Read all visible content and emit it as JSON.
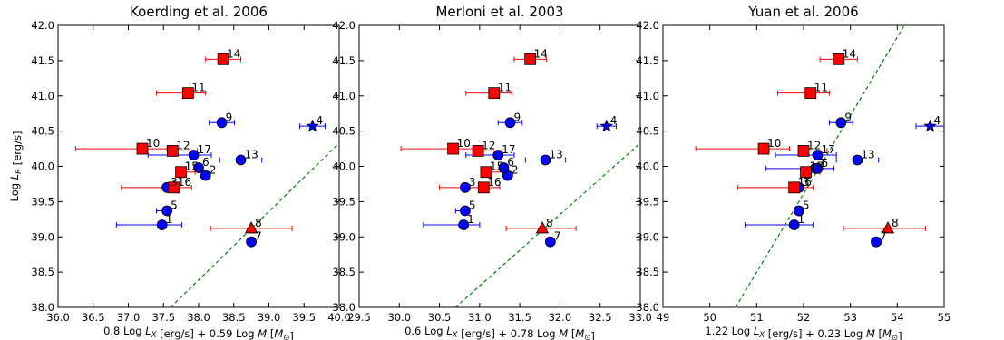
{
  "chart_data": [
    {
      "type": "scatter",
      "title": "Koerding et al. 2006",
      "xlabel": "0.8 Log L_X [erg/s] + 0.59 Log M [M_⊙]",
      "ylabel": "Log L_R [erg/s]",
      "xlim": [
        36.0,
        40.0
      ],
      "ylim": [
        38.0,
        42.0
      ],
      "xticks": [
        "36.0",
        "36.5",
        "37.0",
        "37.5",
        "38.0",
        "38.5",
        "39.0",
        "39.5",
        "40.0"
      ],
      "yticks": [
        "38.0",
        "38.5",
        "39.0",
        "39.5",
        "40.0",
        "40.5",
        "41.0",
        "41.5",
        "42.0"
      ],
      "line": [
        [
          37.6,
          38.0
        ],
        [
          40.0,
          40.33
        ]
      ],
      "points": [
        {
          "label": "1",
          "x": 37.48,
          "y": 39.17,
          "xerr": [
            0.65,
            0.28
          ],
          "marker": "circle",
          "color": "#0000ff"
        },
        {
          "label": "2",
          "x": 38.1,
          "y": 39.87,
          "xerr": [
            0,
            0
          ],
          "marker": "circle",
          "color": "#0000ff"
        },
        {
          "label": "3",
          "x": 37.55,
          "y": 39.7,
          "xerr": [
            0,
            0
          ],
          "marker": "circle",
          "color": "#0000ff"
        },
        {
          "label": "4",
          "x": 39.62,
          "y": 40.57,
          "xerr": [
            0.18,
            0.18
          ],
          "marker": "star",
          "color": "#0000ff"
        },
        {
          "label": "5",
          "x": 37.55,
          "y": 39.37,
          "xerr": [
            0.15,
            0
          ],
          "marker": "circle",
          "color": "#0000ff"
        },
        {
          "label": "6",
          "x": 38.0,
          "y": 39.98,
          "xerr": [
            0,
            0
          ],
          "marker": "circle",
          "color": "#0000ff"
        },
        {
          "label": "7",
          "x": 38.75,
          "y": 38.93,
          "xerr": [
            0.05,
            0.05
          ],
          "marker": "circle",
          "color": "#0000ff"
        },
        {
          "label": "8",
          "x": 38.75,
          "y": 39.12,
          "xerr": [
            0.58,
            0.58
          ],
          "marker": "triangle",
          "color": "#ff0000"
        },
        {
          "label": "9",
          "x": 38.33,
          "y": 40.62,
          "xerr": [
            0.18,
            0.18
          ],
          "marker": "circle",
          "color": "#0000ff"
        },
        {
          "label": "10",
          "x": 37.2,
          "y": 40.25,
          "xerr": [
            0.95,
            0.35
          ],
          "marker": "square",
          "color": "#ff0000"
        },
        {
          "label": "11",
          "x": 37.85,
          "y": 41.04,
          "xerr": [
            0.45,
            0.25
          ],
          "marker": "square",
          "color": "#ff0000"
        },
        {
          "label": "12",
          "x": 37.63,
          "y": 40.22,
          "xerr": [
            0,
            0.35
          ],
          "marker": "square",
          "color": "#ff0000"
        },
        {
          "label": "13",
          "x": 38.6,
          "y": 40.09,
          "xerr": [
            0.3,
            0.3
          ],
          "marker": "circle",
          "color": "#0000ff"
        },
        {
          "label": "14",
          "x": 38.35,
          "y": 41.52,
          "xerr": [
            0.25,
            0.25
          ],
          "marker": "square",
          "color": "#ff0000"
        },
        {
          "label": "15",
          "x": 37.75,
          "y": 39.92,
          "xerr": [
            0,
            0.2
          ],
          "marker": "square",
          "color": "#ff0000"
        },
        {
          "label": "16",
          "x": 37.65,
          "y": 39.7,
          "xerr": [
            0.75,
            0.25
          ],
          "marker": "square",
          "color": "#ff0000"
        },
        {
          "label": "17",
          "x": 37.93,
          "y": 40.16,
          "xerr": [
            0.65,
            0.25
          ],
          "marker": "circle",
          "color": "#0000ff"
        }
      ]
    },
    {
      "type": "scatter",
      "title": "Merloni et al. 2003",
      "xlabel": "0.6 Log L_X [erg/s] + 0.78 Log M [M_⊙]",
      "ylabel": "",
      "xlim": [
        29.5,
        33.0
      ],
      "ylim": [
        38.0,
        42.0
      ],
      "xticks": [
        "29.5",
        "30.0",
        "30.5",
        "31.0",
        "31.5",
        "32.0",
        "32.5",
        "33.0"
      ],
      "yticks": [
        "38.0",
        "38.5",
        "39.0",
        "39.5",
        "40.0",
        "40.5",
        "41.0",
        "41.5",
        "42.0"
      ],
      "line": [
        [
          30.7,
          38.0
        ],
        [
          33.0,
          40.33
        ]
      ],
      "points": [
        {
          "label": "1",
          "x": 30.8,
          "y": 39.17,
          "xerr": [
            0.5,
            0.2
          ],
          "marker": "circle",
          "color": "#0000ff"
        },
        {
          "label": "2",
          "x": 31.35,
          "y": 39.87,
          "xerr": [
            0,
            0
          ],
          "marker": "circle",
          "color": "#0000ff"
        },
        {
          "label": "3",
          "x": 30.82,
          "y": 39.7,
          "xerr": [
            0,
            0
          ],
          "marker": "circle",
          "color": "#0000ff"
        },
        {
          "label": "4",
          "x": 32.58,
          "y": 40.57,
          "xerr": [
            0.12,
            0.12
          ],
          "marker": "star",
          "color": "#0000ff"
        },
        {
          "label": "5",
          "x": 30.82,
          "y": 39.37,
          "xerr": [
            0.12,
            0
          ],
          "marker": "circle",
          "color": "#0000ff"
        },
        {
          "label": "6",
          "x": 31.3,
          "y": 39.98,
          "xerr": [
            0,
            0
          ],
          "marker": "circle",
          "color": "#0000ff"
        },
        {
          "label": "7",
          "x": 31.88,
          "y": 38.93,
          "xerr": [
            0.05,
            0.05
          ],
          "marker": "circle",
          "color": "#0000ff"
        },
        {
          "label": "8",
          "x": 31.78,
          "y": 39.12,
          "xerr": [
            0.45,
            0.42
          ],
          "marker": "triangle",
          "color": "#ff0000"
        },
        {
          "label": "9",
          "x": 31.38,
          "y": 40.62,
          "xerr": [
            0.15,
            0.15
          ],
          "marker": "circle",
          "color": "#0000ff"
        },
        {
          "label": "10",
          "x": 30.67,
          "y": 40.25,
          "xerr": [
            0.65,
            0.3
          ],
          "marker": "square",
          "color": "#ff0000"
        },
        {
          "label": "11",
          "x": 31.18,
          "y": 41.04,
          "xerr": [
            0.35,
            0.22
          ],
          "marker": "square",
          "color": "#ff0000"
        },
        {
          "label": "12",
          "x": 30.98,
          "y": 40.22,
          "xerr": [
            0,
            0.3
          ],
          "marker": "square",
          "color": "#ff0000"
        },
        {
          "label": "13",
          "x": 31.82,
          "y": 40.09,
          "xerr": [
            0.25,
            0.25
          ],
          "marker": "circle",
          "color": "#0000ff"
        },
        {
          "label": "14",
          "x": 31.63,
          "y": 41.52,
          "xerr": [
            0.2,
            0.2
          ],
          "marker": "square",
          "color": "#ff0000"
        },
        {
          "label": "15",
          "x": 31.08,
          "y": 39.92,
          "xerr": [
            0,
            0.2
          ],
          "marker": "square",
          "color": "#ff0000"
        },
        {
          "label": "16",
          "x": 31.05,
          "y": 39.7,
          "xerr": [
            0.55,
            0.2
          ],
          "marker": "square",
          "color": "#ff0000"
        },
        {
          "label": "17",
          "x": 31.23,
          "y": 40.16,
          "xerr": [
            0.4,
            0.2
          ],
          "marker": "circle",
          "color": "#0000ff"
        }
      ]
    },
    {
      "type": "scatter",
      "title": "Yuan et al. 2006",
      "xlabel": "1.22 Log L_X [erg/s] + 0.23 Log M [M_⊙]",
      "ylabel": "",
      "xlim": [
        49,
        55
      ],
      "ylim": [
        38.0,
        42.0
      ],
      "xticks": [
        "49",
        "50",
        "51",
        "52",
        "53",
        "54",
        "55"
      ],
      "yticks": [
        "38.0",
        "38.5",
        "39.0",
        "39.5",
        "40.0",
        "40.5",
        "41.0",
        "41.5",
        "42.0"
      ],
      "line": [
        [
          50.55,
          38.0
        ],
        [
          54.15,
          42.0
        ]
      ],
      "points": [
        {
          "label": "1",
          "x": 51.8,
          "y": 39.17,
          "xerr": [
            1.05,
            0.4
          ],
          "marker": "circle",
          "color": "#0000ff"
        },
        {
          "label": "2",
          "x": 52.25,
          "y": 39.97,
          "xerr": [
            1.05,
            0.4
          ],
          "marker": "circle",
          "color": "#0000ff"
        },
        {
          "label": "3",
          "x": 51.9,
          "y": 39.7,
          "xerr": [
            0,
            0
          ],
          "marker": "circle",
          "color": "#0000ff"
        },
        {
          "label": "4",
          "x": 54.7,
          "y": 40.57,
          "xerr": [
            0.3,
            0.3
          ],
          "marker": "star",
          "color": "#0000ff"
        },
        {
          "label": "5",
          "x": 51.9,
          "y": 39.37,
          "xerr": [
            0.1,
            0
          ],
          "marker": "circle",
          "color": "#0000ff"
        },
        {
          "label": "6",
          "x": 52.3,
          "y": 39.97,
          "xerr": [
            0,
            0
          ],
          "marker": "circle",
          "color": "#0000ff"
        },
        {
          "label": "7",
          "x": 53.55,
          "y": 38.93,
          "xerr": [
            0.1,
            0.1
          ],
          "marker": "circle",
          "color": "#0000ff"
        },
        {
          "label": "8",
          "x": 53.8,
          "y": 39.12,
          "xerr": [
            0.95,
            0.8
          ],
          "marker": "triangle",
          "color": "#ff0000"
        },
        {
          "label": "9",
          "x": 52.8,
          "y": 40.62,
          "xerr": [
            0.25,
            0.25
          ],
          "marker": "circle",
          "color": "#0000ff"
        },
        {
          "label": "10",
          "x": 51.15,
          "y": 40.25,
          "xerr": [
            1.45,
            0.55
          ],
          "marker": "square",
          "color": "#ff0000"
        },
        {
          "label": "11",
          "x": 52.15,
          "y": 41.04,
          "xerr": [
            0.7,
            0.4
          ],
          "marker": "square",
          "color": "#ff0000"
        },
        {
          "label": "12",
          "x": 52.0,
          "y": 40.22,
          "xerr": [
            0,
            0.5
          ],
          "marker": "square",
          "color": "#ff0000"
        },
        {
          "label": "13",
          "x": 53.15,
          "y": 40.09,
          "xerr": [
            0.45,
            0.45
          ],
          "marker": "circle",
          "color": "#0000ff"
        },
        {
          "label": "14",
          "x": 52.75,
          "y": 41.52,
          "xerr": [
            0.4,
            0.4
          ],
          "marker": "square",
          "color": "#ff0000"
        },
        {
          "label": "15",
          "x": 52.05,
          "y": 39.92,
          "xerr": [
            0,
            0.3
          ],
          "marker": "square",
          "color": "#ff0000"
        },
        {
          "label": "16",
          "x": 51.8,
          "y": 39.7,
          "xerr": [
            1.2,
            0.4
          ],
          "marker": "square",
          "color": "#ff0000"
        },
        {
          "label": "17",
          "x": 52.3,
          "y": 40.16,
          "xerr": [
            0.9,
            0.4
          ],
          "marker": "circle",
          "color": "#0000ff"
        }
      ]
    }
  ],
  "colors": {
    "circle_fill": "#0000ff",
    "square_fill": "#ff0000",
    "line_color": "#008000",
    "axis": "#000000"
  }
}
